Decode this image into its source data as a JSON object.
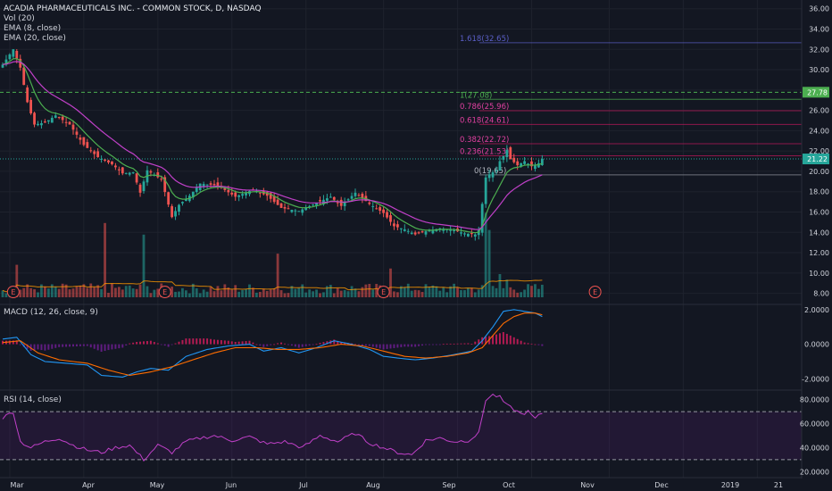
{
  "header": {
    "title": "ACADIA PHARMACEUTICALS INC. - COMMON STOCK, D, NASDAQ",
    "indicators": [
      "Vol (20)",
      "EMA (8, close)",
      "EMA (20, close)"
    ],
    "macd_label": "MACD (12, 26, close, 9)",
    "rsi_label": "RSI (14, close)"
  },
  "colors": {
    "background": "#131722",
    "up": "#26a69a",
    "down": "#ef5350",
    "ema8": "#4caf50",
    "ema20": "#c040c8",
    "macd": "#2196f3",
    "signal": "#ff6d00",
    "rsi": "#c040c8",
    "fib": "#9c27b0",
    "price_line": "#26a69a"
  },
  "chart_data": [
    {
      "type": "candlestick",
      "title": "ACADIA PHARMACEUTICALS INC. - COMMON STOCK, D, NASDAQ",
      "y_ticks": [
        "36.00",
        "34.00",
        "32.00",
        "30.00",
        "28.00",
        "26.00",
        "24.00",
        "22.00",
        "20.00",
        "18.00",
        "16.00",
        "14.00",
        "12.00",
        "10.00",
        "8.00"
      ],
      "ylim": [
        7,
        36.5
      ],
      "x_ticks": [
        "Mar",
        "Apr",
        "May",
        "Jun",
        "Jul",
        "Aug",
        "Sep",
        "Oct",
        "Nov",
        "Dec",
        "2019",
        "21"
      ],
      "current_price": "21.22",
      "target_price": "27.78",
      "fib_levels": [
        {
          "label": "1.618(32.65)",
          "value": 32.65
        },
        {
          "label": "1(27.08)",
          "value": 27.08
        },
        {
          "label": "0.786(25.96)",
          "value": 25.96
        },
        {
          "label": "0.618(24.61)",
          "value": 24.61
        },
        {
          "label": "0.382(22.72)",
          "value": 22.72
        },
        {
          "label": "0.236(21.53)",
          "value": 21.53
        },
        {
          "label": "0(19.65)",
          "value": 19.65
        }
      ],
      "close_anchors": [
        [
          0,
          30.5
        ],
        [
          3,
          32.0
        ],
        [
          5,
          30.2
        ],
        [
          7,
          26.8
        ],
        [
          9,
          24.6
        ],
        [
          12,
          24.8
        ],
        [
          15,
          25.5
        ],
        [
          19,
          24.6
        ],
        [
          23,
          22.6
        ],
        [
          27,
          21.4
        ],
        [
          31,
          20.7
        ],
        [
          34,
          19.8
        ],
        [
          37,
          19.9
        ],
        [
          39,
          17.9
        ],
        [
          41,
          20.1
        ],
        [
          45,
          19.2
        ],
        [
          48,
          15.5
        ],
        [
          50,
          16.7
        ],
        [
          53,
          17.6
        ],
        [
          56,
          18.8
        ],
        [
          61,
          18.6
        ],
        [
          66,
          17.5
        ],
        [
          71,
          18.2
        ],
        [
          75,
          17.6
        ],
        [
          79,
          16.4
        ],
        [
          84,
          16.1
        ],
        [
          89,
          16.9
        ],
        [
          93,
          17.5
        ],
        [
          96,
          16.6
        ],
        [
          100,
          17.9
        ],
        [
          104,
          16.8
        ],
        [
          108,
          15.9
        ],
        [
          111,
          14.6
        ],
        [
          114,
          14.3
        ],
        [
          117,
          13.8
        ],
        [
          120,
          14.1
        ],
        [
          124,
          14.4
        ],
        [
          128,
          14.2
        ],
        [
          131,
          13.9
        ],
        [
          134,
          13.8
        ],
        [
          135,
          14.2
        ],
        [
          136,
          16.8
        ],
        [
          137,
          19.4
        ],
        [
          138,
          19.7
        ],
        [
          140,
          20.1
        ],
        [
          141,
          21.0
        ],
        [
          142,
          21.5
        ],
        [
          143,
          22.1
        ],
        [
          144,
          21.2
        ],
        [
          146,
          20.6
        ],
        [
          148,
          21.0
        ],
        [
          150,
          20.5
        ],
        [
          152,
          20.8
        ],
        [
          153,
          21.22
        ]
      ],
      "volume": {
        "label": "Vol (20)",
        "spikes": [
          [
            4,
            7.0
          ],
          [
            29,
            16.0
          ],
          [
            40,
            13.5
          ],
          [
            78,
            9.4
          ],
          [
            110,
            6.2
          ],
          [
            137,
            18.2
          ],
          [
            138,
            14.5
          ],
          [
            141,
            5.0
          ],
          [
            143,
            3.8
          ]
        ]
      },
      "earnings_markers": [
        "E",
        "E",
        "E",
        "E"
      ]
    },
    {
      "type": "line",
      "title": "MACD (12, 26, close, 9)",
      "y_ticks": [
        "2.0000",
        "0.0000",
        "-2.0000"
      ],
      "ylim": [
        -2.6,
        2.3
      ],
      "series": [
        {
          "name": "MACD"
        },
        {
          "name": "Signal"
        },
        {
          "name": "Histogram"
        }
      ],
      "macd_anchors": [
        [
          0,
          0.3
        ],
        [
          4,
          0.4
        ],
        [
          8,
          -0.6
        ],
        [
          12,
          -1.0
        ],
        [
          18,
          -1.1
        ],
        [
          24,
          -1.2
        ],
        [
          28,
          -1.8
        ],
        [
          34,
          -1.9
        ],
        [
          38,
          -1.6
        ],
        [
          42,
          -1.4
        ],
        [
          47,
          -1.5
        ],
        [
          52,
          -0.7
        ],
        [
          58,
          -0.3
        ],
        [
          64,
          -0.1
        ],
        [
          70,
          0.0
        ],
        [
          74,
          -0.4
        ],
        [
          79,
          -0.2
        ],
        [
          84,
          -0.5
        ],
        [
          89,
          -0.2
        ],
        [
          94,
          0.2
        ],
        [
          99,
          0.0
        ],
        [
          104,
          -0.3
        ],
        [
          108,
          -0.7
        ],
        [
          112,
          -0.8
        ],
        [
          117,
          -0.9
        ],
        [
          122,
          -0.8
        ],
        [
          128,
          -0.6
        ],
        [
          133,
          -0.4
        ],
        [
          136,
          0.2
        ],
        [
          139,
          1.0
        ],
        [
          142,
          1.9
        ],
        [
          145,
          2.0
        ],
        [
          148,
          1.9
        ],
        [
          151,
          1.8
        ],
        [
          153,
          1.6
        ]
      ],
      "signal_anchors": [
        [
          0,
          0.1
        ],
        [
          5,
          0.2
        ],
        [
          10,
          -0.5
        ],
        [
          16,
          -0.9
        ],
        [
          24,
          -1.1
        ],
        [
          30,
          -1.5
        ],
        [
          36,
          -1.8
        ],
        [
          42,
          -1.6
        ],
        [
          48,
          -1.3
        ],
        [
          54,
          -0.9
        ],
        [
          60,
          -0.5
        ],
        [
          66,
          -0.2
        ],
        [
          72,
          -0.2
        ],
        [
          78,
          -0.3
        ],
        [
          84,
          -0.3
        ],
        [
          90,
          -0.2
        ],
        [
          96,
          0.0
        ],
        [
          102,
          -0.1
        ],
        [
          108,
          -0.4
        ],
        [
          114,
          -0.7
        ],
        [
          120,
          -0.8
        ],
        [
          126,
          -0.7
        ],
        [
          132,
          -0.5
        ],
        [
          136,
          -0.2
        ],
        [
          139,
          0.5
        ],
        [
          142,
          1.2
        ],
        [
          145,
          1.6
        ],
        [
          148,
          1.8
        ],
        [
          151,
          1.8
        ],
        [
          153,
          1.7
        ]
      ]
    },
    {
      "type": "line",
      "title": "RSI (14, close)",
      "y_ticks": [
        "80.0000",
        "60.0000",
        "40.0000",
        "20.0000"
      ],
      "ylim": [
        15,
        88
      ],
      "bands": [
        30,
        70
      ],
      "rsi_anchors": [
        [
          0,
          65
        ],
        [
          3,
          70
        ],
        [
          5,
          45
        ],
        [
          8,
          40
        ],
        [
          12,
          45
        ],
        [
          16,
          48
        ],
        [
          20,
          42
        ],
        [
          24,
          38
        ],
        [
          28,
          36
        ],
        [
          32,
          40
        ],
        [
          36,
          42
        ],
        [
          40,
          30
        ],
        [
          44,
          42
        ],
        [
          48,
          36
        ],
        [
          52,
          45
        ],
        [
          56,
          48
        ],
        [
          60,
          50
        ],
        [
          65,
          46
        ],
        [
          70,
          49
        ],
        [
          75,
          43
        ],
        [
          80,
          45
        ],
        [
          85,
          40
        ],
        [
          90,
          50
        ],
        [
          95,
          45
        ],
        [
          100,
          52
        ],
        [
          104,
          44
        ],
        [
          108,
          40
        ],
        [
          112,
          36
        ],
        [
          116,
          34
        ],
        [
          120,
          46
        ],
        [
          124,
          48
        ],
        [
          128,
          45
        ],
        [
          132,
          46
        ],
        [
          135,
          52
        ],
        [
          137,
          80
        ],
        [
          139,
          84
        ],
        [
          141,
          82
        ],
        [
          143,
          75
        ],
        [
          145,
          72
        ],
        [
          147,
          68
        ],
        [
          149,
          70
        ],
        [
          151,
          64
        ],
        [
          153,
          69
        ]
      ]
    }
  ]
}
